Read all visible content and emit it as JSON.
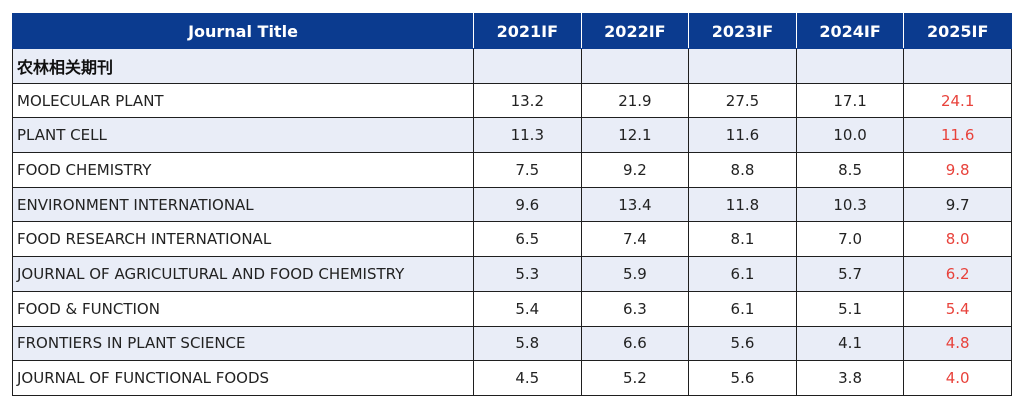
{
  "table": {
    "headers": [
      "Journal Title",
      "2021IF",
      "2022IF",
      "2023IF",
      "2024IF",
      "2025IF"
    ],
    "section_label": "农林相关期刊",
    "rows": [
      {
        "name": "MOLECULAR PLANT",
        "values": [
          "13.2",
          "21.9",
          "27.5",
          "17.1",
          "24.1"
        ]
      },
      {
        "name": "PLANT CELL",
        "values": [
          "11.3",
          "12.1",
          "11.6",
          "10.0",
          "11.6"
        ]
      },
      {
        "name": "FOOD CHEMISTRY",
        "values": [
          "7.5",
          "9.2",
          "8.8",
          "8.5",
          "9.8"
        ]
      },
      {
        "name": "ENVIRONMENT INTERNATIONAL",
        "values": [
          "9.6",
          "13.4",
          "11.8",
          "10.3",
          "9.7"
        ]
      },
      {
        "name": "FOOD RESEARCH INTERNATIONAL",
        "values": [
          "6.5",
          "7.4",
          "8.1",
          "7.0",
          "8.0"
        ]
      },
      {
        "name": "JOURNAL OF AGRICULTURAL AND FOOD CHEMISTRY",
        "values": [
          "5.3",
          "5.9",
          "6.1",
          "5.7",
          "6.2"
        ]
      },
      {
        "name": "FOOD & FUNCTION",
        "values": [
          "5.4",
          "6.3",
          "6.1",
          "5.1",
          "5.4"
        ]
      },
      {
        "name": "FRONTIERS IN PLANT SCIENCE",
        "values": [
          "5.8",
          "6.6",
          "5.6",
          "4.1",
          "4.8"
        ]
      },
      {
        "name": "JOURNAL OF FUNCTIONAL FOODS",
        "values": [
          "4.5",
          "5.2",
          "5.6",
          "3.8",
          "4.0"
        ]
      }
    ]
  },
  "colors": {
    "header_bg": "#0b3b8f",
    "header_text": "#ffffff",
    "alt_row_bg": "#e9edf7",
    "highlight_2025": "#e8423b"
  }
}
